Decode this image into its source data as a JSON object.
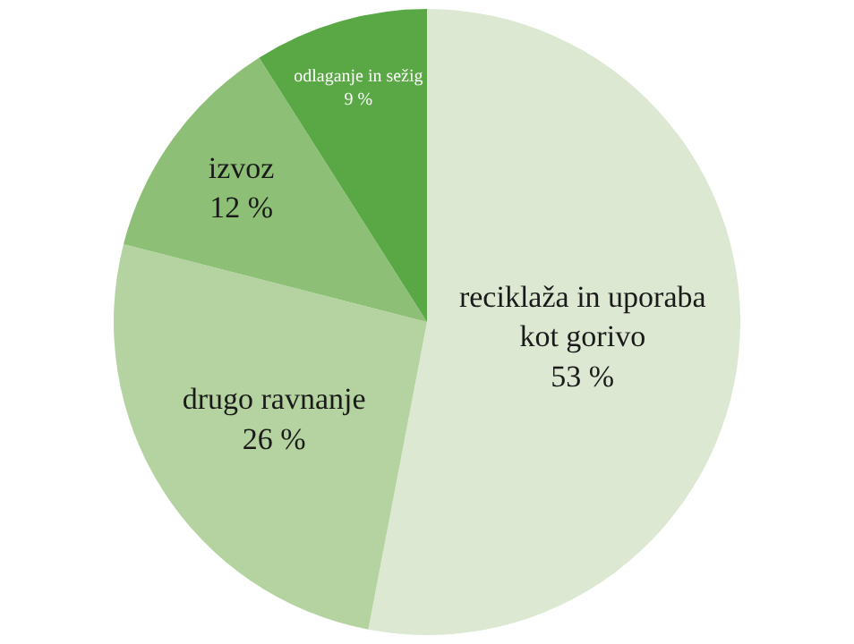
{
  "chart_data": {
    "type": "pie",
    "categories": [
      "reciklaža in uporaba kot gorivo",
      "drugo ravnanje",
      "izvoz",
      "odlaganje in sežig"
    ],
    "values": [
      53,
      26,
      12,
      9
    ],
    "value_labels": [
      "53 %",
      "26 %",
      "12 %",
      "9 %"
    ],
    "colors": [
      "#dce8d2",
      "#b5d3a0",
      "#8dbf76",
      "#5aa845"
    ],
    "legend": false
  }
}
